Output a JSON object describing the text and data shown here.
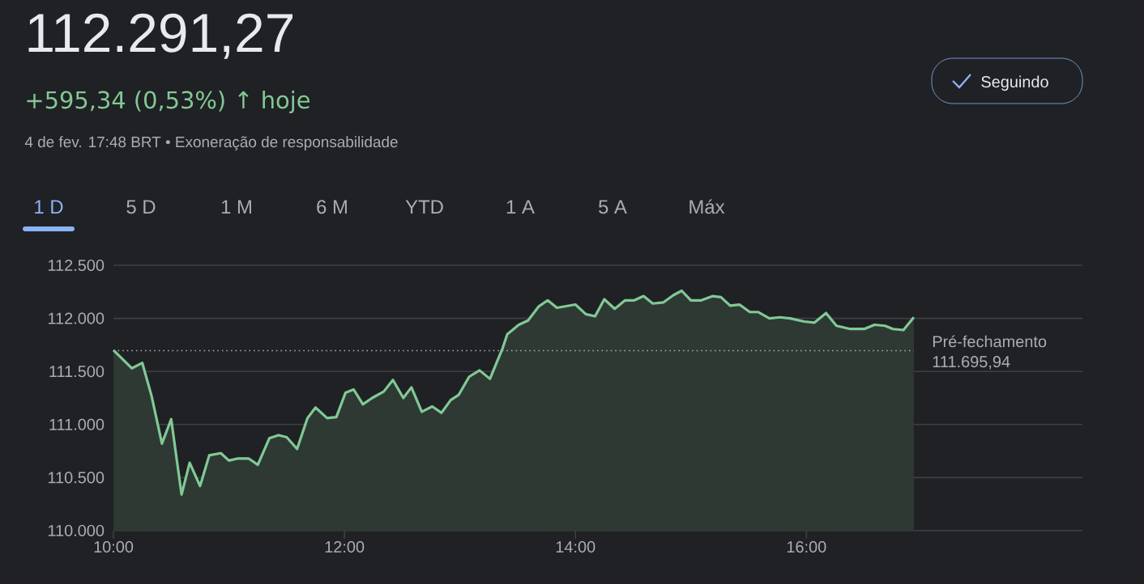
{
  "chart_data": {
    "type": "area",
    "title": "112.291,27",
    "subtitle": "+595,34 (0,53%) ↑ hoje",
    "annotations": [
      "4 de fev. 17:48 BRT • Exoneração de responsabilidade",
      "Seguindo",
      "1 D",
      "5 D",
      "1 M",
      "6 M",
      "YTD",
      "1 A",
      "5 A",
      "Máx"
    ],
    "x": [
      10.0,
      10.16,
      10.25,
      10.33,
      10.42,
      10.5,
      10.59,
      10.66,
      10.75,
      10.83,
      10.93,
      11.0,
      11.08,
      11.17,
      11.25,
      11.35,
      11.43,
      11.5,
      11.59,
      11.68,
      11.75,
      11.85,
      11.93,
      12.01,
      12.08,
      12.16,
      12.24,
      12.34,
      12.42,
      12.51,
      12.58,
      12.67,
      12.76,
      12.84,
      12.92,
      12.99,
      13.08,
      13.17,
      13.26,
      13.37,
      13.41,
      13.51,
      13.59,
      13.68,
      13.76,
      13.84,
      14.0,
      14.09,
      14.17,
      14.25,
      14.34,
      14.43,
      14.51,
      14.59,
      14.67,
      14.76,
      14.85,
      14.92,
      15.0,
      15.09,
      15.19,
      15.26,
      15.34,
      15.42,
      15.51,
      15.58,
      15.68,
      15.77,
      15.86,
      15.98,
      16.07,
      16.17,
      16.26,
      16.38,
      16.5,
      16.59,
      16.68,
      16.75,
      16.84,
      16.93
    ],
    "values": [
      111700,
      111530,
      111580,
      111270,
      110820,
      111050,
      110340,
      110640,
      110420,
      110710,
      110730,
      110660,
      110680,
      110680,
      110620,
      110870,
      110900,
      110880,
      110770,
      111060,
      111160,
      111060,
      111070,
      111300,
      111330,
      111190,
      111250,
      111310,
      111420,
      111250,
      111350,
      111120,
      111170,
      111110,
      111230,
      111280,
      111450,
      111510,
      111430,
      111720,
      111850,
      111940,
      111980,
      112110,
      112170,
      112100,
      112130,
      112040,
      112020,
      112180,
      112090,
      112170,
      112170,
      112210,
      112140,
      112150,
      112220,
      112260,
      112170,
      112170,
      112210,
      112200,
      112120,
      112130,
      112060,
      112060,
      112000,
      112010,
      112000,
      111970,
      111960,
      112050,
      111930,
      111900,
      111900,
      111940,
      111930,
      111900,
      111890,
      112010
    ],
    "color": "#81c995",
    "xlim": [
      10,
      18.39
    ],
    "ylim": [
      110000,
      112500
    ],
    "xticks": [
      {
        "value": 10,
        "label": "10:00"
      },
      {
        "value": 12,
        "label": "12:00"
      },
      {
        "value": 14,
        "label": "14:00"
      },
      {
        "value": 16,
        "label": "16:00"
      }
    ],
    "yticks": [
      {
        "value": 110000,
        "label": "110.000"
      },
      {
        "value": 110500,
        "label": "110.500"
      },
      {
        "value": 111000,
        "label": "111.000"
      },
      {
        "value": 111500,
        "label": "111.500"
      },
      {
        "value": 112000,
        "label": "112.000"
      },
      {
        "value": 112500,
        "label": "112.500"
      }
    ],
    "ref_lines": [
      {
        "axis": "y",
        "value": 111695.94,
        "label": "Pré-fechamento 111.695,94",
        "line_style": "dotted"
      }
    ],
    "grid": "y",
    "marker": "none"
  }
}
